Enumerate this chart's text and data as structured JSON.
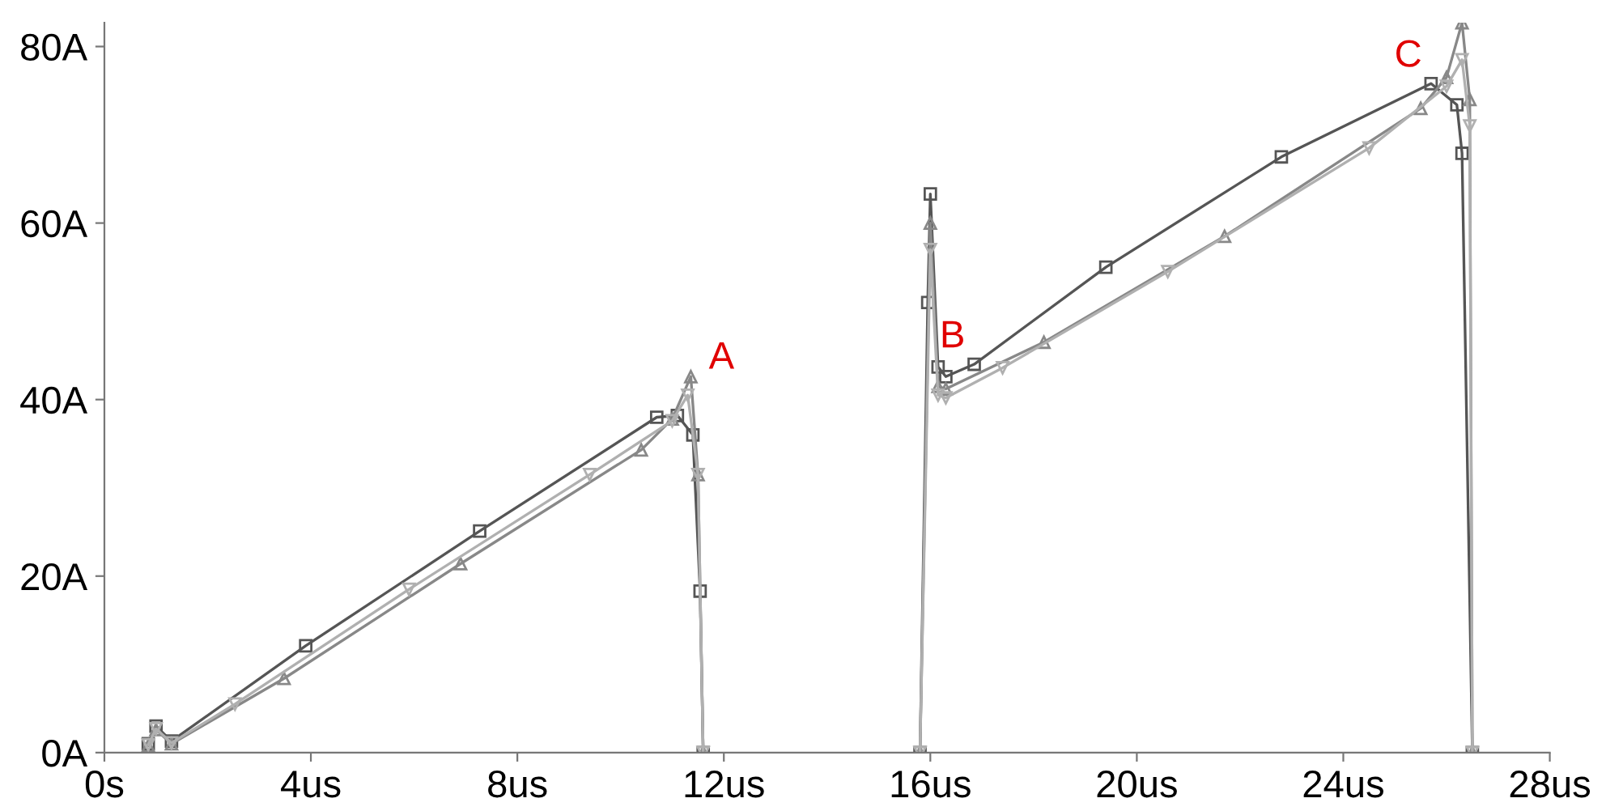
{
  "chart_data": {
    "type": "line",
    "xlim": [
      0,
      28
    ],
    "ylim": [
      0,
      82.7
    ],
    "xticks": [
      {
        "value": 0,
        "label": "0s"
      },
      {
        "value": 4,
        "label": "4us"
      },
      {
        "value": 8,
        "label": "8us"
      },
      {
        "value": 12,
        "label": "12us"
      },
      {
        "value": 16,
        "label": "16us"
      },
      {
        "value": 20,
        "label": "20us"
      },
      {
        "value": 24,
        "label": "24us"
      },
      {
        "value": 28,
        "label": "28us"
      }
    ],
    "yticks": [
      {
        "value": 0,
        "label": "0A"
      },
      {
        "value": 20,
        "label": "20A"
      },
      {
        "value": 40,
        "label": "40A"
      },
      {
        "value": 60,
        "label": "60A"
      },
      {
        "value": 80,
        "label": "80A"
      }
    ],
    "grid": false,
    "legend": false,
    "series": [
      {
        "color": "#555555",
        "marker": "square",
        "x": [
          0.85,
          1.0,
          1.3,
          3.9,
          7.27,
          10.7,
          11.1,
          11.4,
          11.54,
          11.6,
          13.7,
          15.8,
          15.95,
          16.0,
          16.15,
          16.3,
          16.85,
          19.4,
          22.8,
          25.7,
          26.2,
          26.3,
          26.5
        ],
        "values": [
          1,
          3,
          1.3,
          12.1,
          25.1,
          38,
          38.2,
          36,
          18.3,
          0,
          null,
          0,
          51,
          63.3,
          43.7,
          42.6,
          44,
          55,
          67.5,
          75.8,
          73.4,
          67.9,
          0
        ]
      },
      {
        "color": "#888888",
        "marker": "triangle",
        "x": [
          0.85,
          1.0,
          1.3,
          3.48,
          6.9,
          10.4,
          11.0,
          11.36,
          11.5,
          11.6,
          13.7,
          15.8,
          16.0,
          16.15,
          16.3,
          18.2,
          21.7,
          25.5,
          26.0,
          26.3,
          26.45,
          26.5
        ],
        "values": [
          0.8,
          2.6,
          1.0,
          8.4,
          21.4,
          34.3,
          37.8,
          42.6,
          31.5,
          0,
          null,
          0,
          60,
          41.5,
          41.2,
          46.5,
          58.5,
          73,
          76.5,
          82.7,
          74,
          0
        ]
      },
      {
        "color": "#b0b0b0",
        "marker": "triangle_down",
        "x": [
          0.85,
          1.0,
          1.3,
          2.53,
          5.9,
          9.4,
          11.0,
          11.3,
          11.5,
          11.6,
          13.7,
          15.8,
          16.0,
          16.15,
          16.3,
          17.4,
          20.6,
          24.5,
          26.0,
          26.3,
          26.45,
          26.5
        ],
        "values": [
          0.9,
          2.7,
          1.1,
          5.5,
          18.5,
          31.5,
          37.6,
          40.5,
          31.5,
          0,
          null,
          0,
          57,
          40.5,
          40.2,
          43.6,
          54.5,
          68.5,
          75.5,
          78.5,
          71,
          0
        ]
      }
    ],
    "annotations": [
      {
        "text": "A",
        "x": 11.36,
        "y": 42.6
      },
      {
        "text": "B",
        "x": 16.85,
        "y": 44
      },
      {
        "text": "C",
        "x": 25.7,
        "y": 75.8
      }
    ]
  }
}
